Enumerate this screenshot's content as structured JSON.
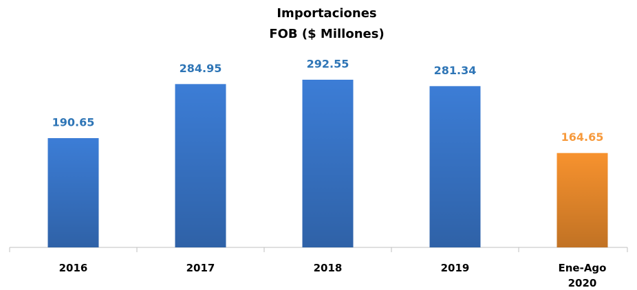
{
  "chart_data": {
    "type": "bar",
    "title": "Importaciones",
    "subtitle": "FOB ($ Millones)",
    "categories": [
      "2016",
      "2017",
      "2018",
      "2019",
      "Ene-Ago 2020"
    ],
    "values": [
      190.65,
      284.95,
      292.55,
      281.34,
      164.65
    ],
    "colors": [
      "#3c7dd6",
      "#3c7dd6",
      "#3c7dd6",
      "#3c7dd6",
      "#f7922e"
    ],
    "label_colors": [
      "#2e75b6",
      "#2e75b6",
      "#2e75b6",
      "#2e75b6",
      "#f79a3c"
    ]
  }
}
